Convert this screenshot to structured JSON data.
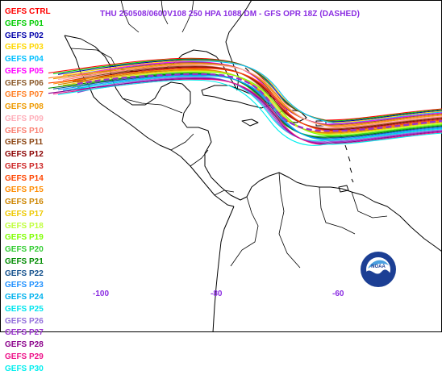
{
  "title": "THU 250508/0600V108  250 HPA 1088 DM - GFS OPR 18Z (DASHED)",
  "legend": [
    {
      "label": "GEFS CTRL",
      "color": "#ff0000"
    },
    {
      "label": "GEFS P01",
      "color": "#00cc00"
    },
    {
      "label": "GEFS P02",
      "color": "#0000aa"
    },
    {
      "label": "GEFS P03",
      "color": "#ffd700"
    },
    {
      "label": "GEFS P04",
      "color": "#00bfff"
    },
    {
      "label": "GEFS P05",
      "color": "#ff00ff"
    },
    {
      "label": "GEFS P06",
      "color": "#8b5a2b"
    },
    {
      "label": "GEFS P07",
      "color": "#ff7f24"
    },
    {
      "label": "GEFS P08",
      "color": "#ee9a00"
    },
    {
      "label": "GEFS P09",
      "color": "#ffaeb9"
    },
    {
      "label": "GEFS P10",
      "color": "#fa8072"
    },
    {
      "label": "GEFS P11",
      "color": "#8b4513"
    },
    {
      "label": "GEFS P12",
      "color": "#8b0000"
    },
    {
      "label": "GEFS P13",
      "color": "#cd2626"
    },
    {
      "label": "GEFS P14",
      "color": "#ff4500"
    },
    {
      "label": "GEFS P15",
      "color": "#ff8c00"
    },
    {
      "label": "GEFS P16",
      "color": "#cd8500"
    },
    {
      "label": "GEFS P17",
      "color": "#eec900"
    },
    {
      "label": "GEFS P18",
      "color": "#c0ff3e"
    },
    {
      "label": "GEFS P19",
      "color": "#7fff00"
    },
    {
      "label": "GEFS P20",
      "color": "#32cd32"
    },
    {
      "label": "GEFS P21",
      "color": "#008b00"
    },
    {
      "label": "GEFS P22",
      "color": "#104e8b"
    },
    {
      "label": "GEFS P23",
      "color": "#1e90ff"
    },
    {
      "label": "GEFS P24",
      "color": "#00b2ee"
    },
    {
      "label": "GEFS P25",
      "color": "#00e5ee"
    },
    {
      "label": "GEFS P26",
      "color": "#9370db"
    },
    {
      "label": "GEFS P27",
      "color": "#9932cc"
    },
    {
      "label": "GEFS P28",
      "color": "#8b008b"
    },
    {
      "label": "GEFS P29",
      "color": "#ee1289"
    },
    {
      "label": "GEFS P30",
      "color": "#00eeee"
    }
  ],
  "longitudes": [
    "-100",
    "-80",
    "-60"
  ],
  "logo": {
    "text": "NOAA",
    "icon": "noaa-logo-icon"
  },
  "colors": {
    "title": "#8a2be2",
    "opr_dashed": "#9932cc",
    "coast": "#000000",
    "border": "#000000"
  }
}
